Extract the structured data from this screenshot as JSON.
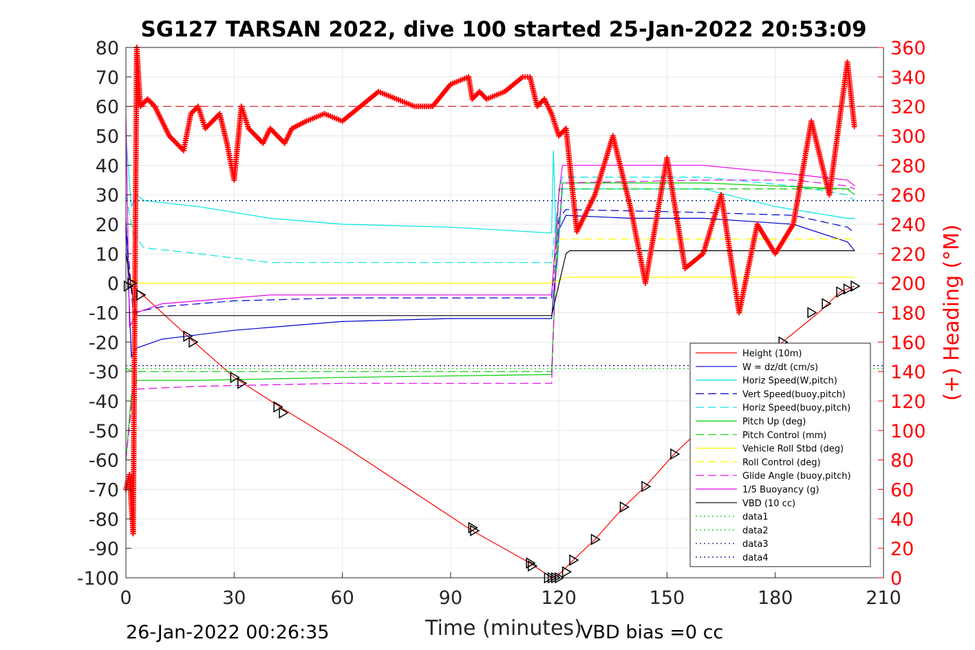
{
  "chart_data": {
    "type": "line",
    "title": "SG127 TARSAN 2022, dive 100 started 25-Jan-2022 20:53:09",
    "xlabel": "Time (minutes)",
    "ylabel": "",
    "ylabel_right": "(+) Heading (°M)",
    "xlim": [
      0,
      210
    ],
    "ylim": [
      -100,
      80
    ],
    "ylim_right": [
      0,
      360
    ],
    "x_ticks": [
      "0",
      "30",
      "60",
      "90",
      "120",
      "150",
      "180",
      "210"
    ],
    "y_ticks": [
      "80",
      "70",
      "60",
      "50",
      "40",
      "30",
      "20",
      "10",
      "0",
      "-10",
      "-20",
      "-30",
      "-40",
      "-50",
      "-60",
      "-70",
      "-80",
      "-90",
      "-100"
    ],
    "y_right_ticks": [
      "360",
      "340",
      "320",
      "300",
      "280",
      "260",
      "240",
      "220",
      "200",
      "180",
      "160",
      "140",
      "120",
      "100",
      "80",
      "60",
      "40",
      "20",
      "0"
    ],
    "grid": true,
    "legend_position": "bottom-right",
    "footer_left": "26-Jan-2022 00:26:35",
    "footer_right": "VBD bias =0 cc",
    "series": [
      {
        "name": "Height (10m)",
        "color": "#ff0000",
        "style": "solid",
        "x": [
          0,
          2,
          18,
          30,
          44,
          60,
          96,
          112,
          118,
          120,
          124,
          130,
          138,
          144,
          152,
          158,
          170,
          182,
          192,
          198,
          202
        ],
        "y": [
          0,
          -1,
          -19,
          -32,
          -43,
          -55,
          -84,
          -95,
          -100,
          -99,
          -94,
          -87,
          -76,
          -69,
          -58,
          -51,
          -35,
          -20,
          -10,
          -3,
          -1
        ]
      },
      {
        "name": "W = dz/dt (cm/s)",
        "color": "#0000cc",
        "style": "solid",
        "x": [
          0,
          1.5,
          3,
          10,
          30,
          60,
          90,
          118,
          120,
          122,
          140,
          160,
          185,
          200,
          202
        ],
        "y": [
          22,
          -25,
          -22,
          -19,
          -16,
          -13,
          -12,
          -12,
          18,
          23,
          22,
          22,
          20,
          14,
          11
        ]
      },
      {
        "name": "Horiz Speed(W,pitch)",
        "color": "#00e5e5",
        "style": "solid",
        "x": [
          0,
          1.5,
          3,
          5,
          20,
          40,
          60,
          90,
          118,
          118.5,
          119.5,
          121,
          140,
          160,
          180,
          200,
          202
        ],
        "y": [
          50,
          26,
          30,
          28,
          26,
          22,
          20,
          19,
          17,
          45,
          5,
          32,
          32,
          32,
          26,
          22,
          22
        ]
      },
      {
        "name": "Vert Speed(buoy,pitch)",
        "color": "#0000cc",
        "style": "dashed",
        "x": [
          0,
          2,
          10,
          30,
          60,
          118,
          120,
          122,
          160,
          185,
          200,
          202
        ],
        "y": [
          20,
          -10,
          -8,
          -6,
          -5,
          -5,
          22,
          25,
          24,
          23,
          19,
          17
        ]
      },
      {
        "name": "Horiz Speed(buoy,pitch)",
        "color": "#00e5e5",
        "style": "dashed",
        "x": [
          0,
          2,
          5,
          20,
          40,
          60,
          118,
          120,
          121,
          160,
          185,
          200,
          202
        ],
        "y": [
          30,
          17,
          12,
          10,
          7,
          7,
          7,
          30,
          36,
          36,
          33,
          30,
          28
        ]
      },
      {
        "name": "Pitch Up (deg)",
        "color": "#00cc00",
        "style": "solid",
        "x": [
          0,
          1.5,
          3,
          20,
          60,
          118,
          119,
          121,
          160,
          180,
          200,
          202
        ],
        "y": [
          -60,
          -38,
          -33,
          -33,
          -32,
          -31,
          0,
          34,
          34,
          33,
          32,
          30
        ]
      },
      {
        "name": "Pitch Control (mm)",
        "color": "#00cc00",
        "style": "dashed",
        "x": [
          0,
          2,
          118,
          120,
          160,
          202
        ],
        "y": [
          -29,
          -30,
          -30,
          32,
          32,
          32
        ]
      },
      {
        "name": "Vehicle Roll Stbd (deg)",
        "color": "#ffff00",
        "style": "solid",
        "x": [
          0,
          2,
          4,
          20,
          60,
          118,
          120,
          122,
          130,
          140,
          160,
          180,
          200,
          202
        ],
        "y": [
          0,
          2,
          0,
          0,
          0,
          0,
          1,
          2,
          2,
          2,
          2,
          2,
          2,
          2
        ]
      },
      {
        "name": "Roll Control (deg)",
        "color": "#ffff00",
        "style": "dashed",
        "x": [
          0,
          2,
          4,
          18,
          30,
          44,
          96,
          112,
          118,
          120,
          202
        ],
        "y": [
          0,
          0,
          0,
          0,
          0,
          0,
          0,
          0,
          0,
          15,
          15
        ]
      },
      {
        "name": "Glide Angle (buoy,pitch)",
        "color": "#e600e6",
        "style": "dashed",
        "x": [
          0,
          2,
          20,
          60,
          118,
          119,
          121,
          160,
          185,
          200,
          202
        ],
        "y": [
          -60,
          -36,
          -35,
          -34,
          -34,
          0,
          34,
          35,
          35,
          33,
          32
        ]
      },
      {
        "name": "1/5 Buoyancy (g)",
        "color": "#e600e6",
        "style": "solid",
        "x": [
          0,
          1,
          3,
          10,
          30,
          40,
          60,
          118,
          120,
          121,
          160,
          185,
          200,
          202
        ],
        "y": [
          57,
          -15,
          -10,
          -7,
          -5,
          -4,
          -4,
          -4,
          30,
          40,
          40,
          37,
          35,
          33
        ]
      },
      {
        "name": "VBD (10 cc)",
        "color": "#000000",
        "style": "solid",
        "x": [
          0,
          2,
          3,
          118,
          122,
          123,
          202
        ],
        "y": [
          10,
          -5,
          -11,
          -11,
          10,
          11,
          11
        ]
      },
      {
        "name": "data1",
        "color": "#00cc00",
        "style": "dotted",
        "x": [
          0,
          210
        ],
        "y": [
          28,
          28
        ]
      },
      {
        "name": "data2",
        "color": "#00cc00",
        "style": "dotted",
        "x": [
          0,
          210
        ],
        "y": [
          -29,
          -29
        ]
      },
      {
        "name": "data3",
        "color": "#000080",
        "style": "dotted",
        "x": [
          0,
          210
        ],
        "y": [
          28,
          28
        ]
      },
      {
        "name": "data4",
        "color": "#000080",
        "style": "dotted",
        "x": [
          0,
          210
        ],
        "y": [
          -28,
          -28
        ]
      }
    ],
    "heading_series": {
      "axis": "right",
      "color": "#ff0000",
      "marker": "+",
      "x": [
        0,
        1,
        2,
        3,
        4,
        6,
        8,
        12,
        16,
        18,
        20,
        22,
        24,
        26,
        28,
        30,
        32,
        34,
        36,
        38,
        40,
        42,
        44,
        46,
        50,
        55,
        60,
        65,
        70,
        75,
        80,
        85,
        90,
        95,
        96,
        98,
        100,
        105,
        110,
        112,
        114,
        116,
        118,
        120,
        122,
        125,
        130,
        135,
        140,
        144,
        150,
        155,
        160,
        165,
        170,
        175,
        180,
        185,
        190,
        195,
        200,
        202
      ],
      "y": [
        60,
        70,
        30,
        360,
        320,
        325,
        320,
        300,
        290,
        315,
        320,
        305,
        310,
        315,
        295,
        270,
        320,
        305,
        300,
        295,
        305,
        300,
        295,
        305,
        310,
        315,
        310,
        320,
        330,
        325,
        320,
        320,
        335,
        340,
        325,
        330,
        325,
        330,
        340,
        340,
        320,
        325,
        315,
        300,
        305,
        235,
        260,
        300,
        250,
        200,
        285,
        210,
        220,
        260,
        180,
        240,
        220,
        240,
        310,
        260,
        350,
        305
      ]
    },
    "heading_reference": {
      "axis": "right",
      "value": 320,
      "color": "#cc0000",
      "style": "dashed"
    },
    "triangle_markers": {
      "x": [
        0.5,
        1.5,
        4,
        17,
        18.5,
        30,
        32,
        42,
        43.5,
        96,
        96.5,
        112,
        112.5,
        117,
        118,
        119,
        120,
        122,
        124,
        130,
        138,
        144,
        152,
        158,
        182,
        190,
        194,
        198,
        200,
        202
      ],
      "y": [
        -1,
        0,
        -4,
        -18,
        -20,
        -32,
        -34,
        -42,
        -44,
        -83,
        -84,
        -95,
        -96,
        -100,
        -100,
        -100,
        -100,
        -98,
        -94,
        -87,
        -76,
        -69,
        -58,
        -51,
        -20,
        -10,
        -7,
        -3,
        -2,
        -1
      ]
    }
  }
}
